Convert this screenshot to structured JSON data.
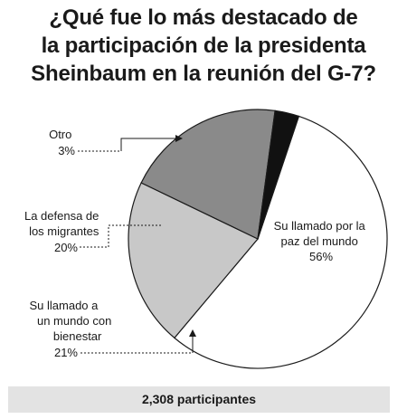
{
  "title_lines": [
    "¿Qué fue lo más destacado de",
    "la participación de la presidenta",
    "Sheinbaum en la reunión del G-7?"
  ],
  "chart_data": {
    "type": "pie",
    "title": "¿Qué fue lo más destacado de la participación de la presidenta Sheinbaum en la reunión del G-7?",
    "slices": [
      {
        "label_lines": [
          "Su llamado por la",
          "paz del mundo"
        ],
        "value": 56,
        "value_label": "56%",
        "color": "#ffffff"
      },
      {
        "label_lines": [
          "Su llamado a",
          "un mundo con",
          "bienestar"
        ],
        "value": 21,
        "value_label": "21%",
        "color": "#c8c8c8"
      },
      {
        "label_lines": [
          "La defensa de",
          "los migrantes"
        ],
        "value": 20,
        "value_label": "20%",
        "color": "#8a8a8a"
      },
      {
        "label_lines": [
          "Otro"
        ],
        "value": 3,
        "value_label": "3%",
        "color": "#111111"
      }
    ]
  },
  "footer": {
    "participants": "2,308 participantes"
  }
}
